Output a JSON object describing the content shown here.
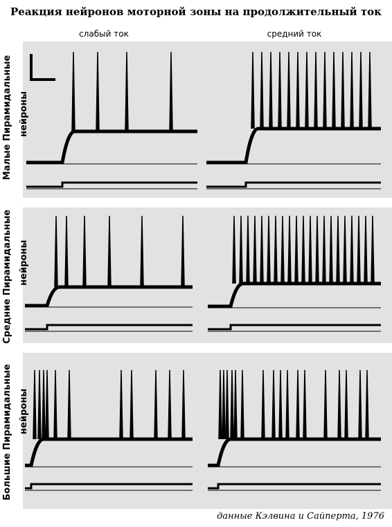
{
  "title": "Реакция нейронов моторной зоны на продолжительный ток",
  "columns": [
    "слабый ток",
    "средний ток"
  ],
  "rows": [
    {
      "label": [
        "Малые Пирамидальные",
        "нейроны"
      ]
    },
    {
      "label": [
        "Средние Пирамидальные",
        "нейроны"
      ]
    },
    {
      "label": [
        "Большие Пирамидальные",
        "нейроны"
      ]
    }
  ],
  "source": "данные Кэлвина и Сайперта, 1976"
}
